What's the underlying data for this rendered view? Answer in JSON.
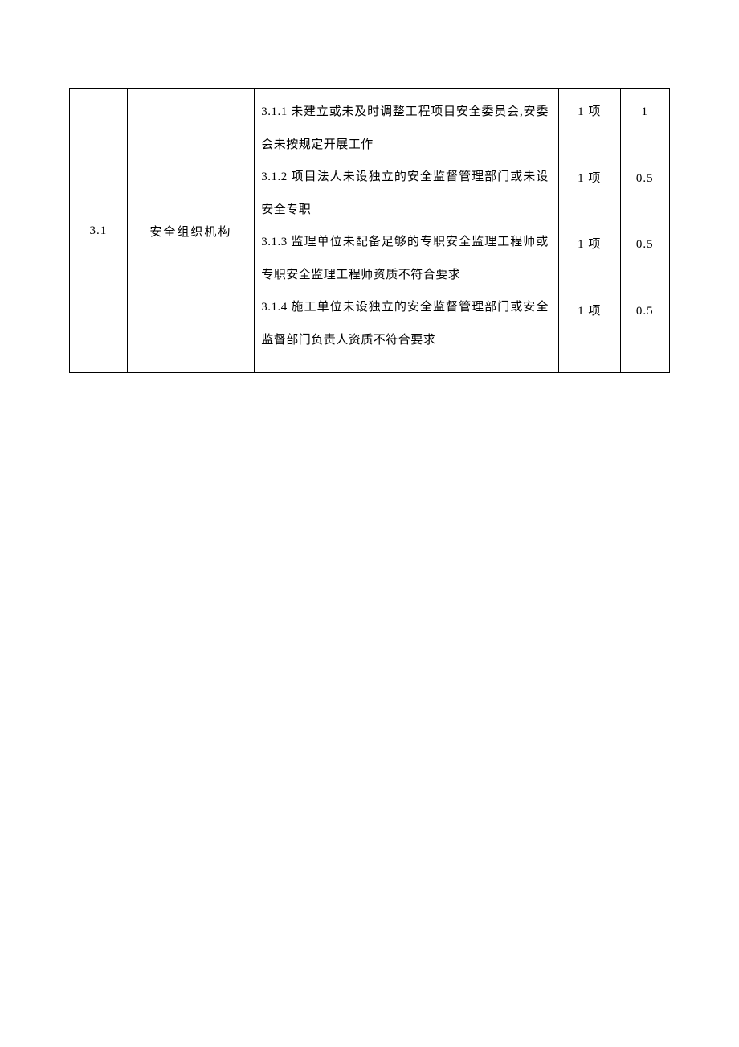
{
  "table": {
    "row": {
      "index": "3.1",
      "category": "安全组织机构",
      "items": [
        {
          "desc": "3.1.1 未建立或未及时调整工程项目安全委员会,安委会未按规定开展工作",
          "unit": "1 项",
          "score": "1"
        },
        {
          "desc": "3.1.2 项目法人未设独立的安全监督管理部门或未设安全专职",
          "unit": "1 项",
          "score": "0.5"
        },
        {
          "desc": "3.1.3 监理单位未配备足够的专职安全监理工程师或专职安全监理工程师资质不符合要求",
          "unit": "1 项",
          "score": "0.5"
        },
        {
          "desc": "3.1.4 施工单位未设独立的安全监督管理部门或安全监督部门负责人资质不符合要求",
          "unit": "1 项",
          "score": "0.5"
        }
      ]
    }
  },
  "style": {
    "background_color": "#ffffff",
    "border_color": "#000000",
    "text_color": "#000000",
    "font_size": 15,
    "line_height": 2.7,
    "col_widths": {
      "index": 70,
      "category": 155,
      "desc": 370,
      "unit": 75,
      "score": 60
    }
  }
}
